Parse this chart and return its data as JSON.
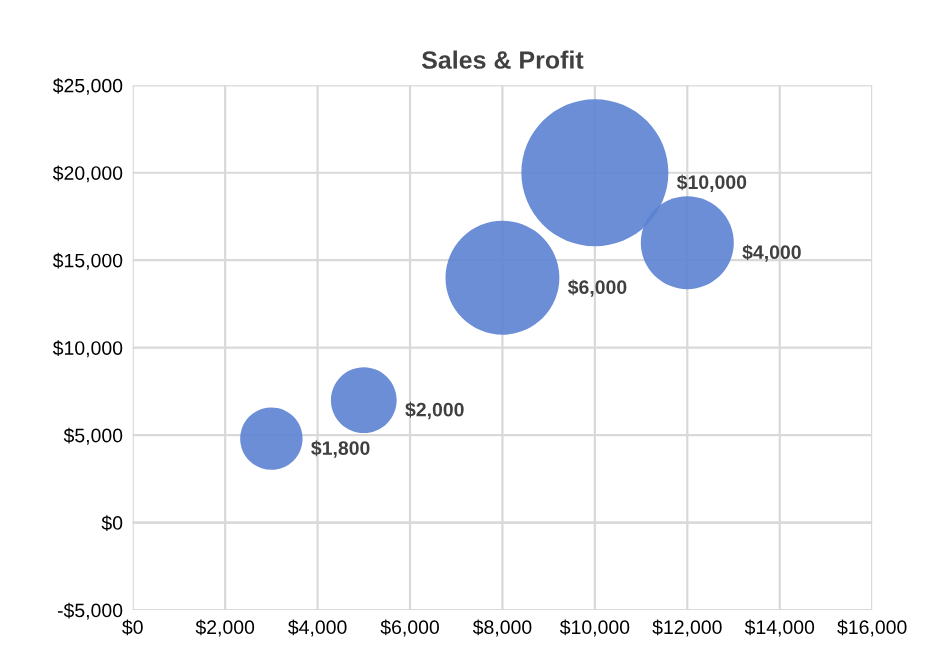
{
  "chart_data": {
    "type": "bubble",
    "title": "Sales & Profit",
    "x": [
      3000,
      5000,
      8000,
      10000,
      12000
    ],
    "values": [
      4800,
      7000,
      14000,
      20000,
      16000
    ],
    "sizes": [
      0.18,
      0.2,
      0.6,
      1,
      0.4
    ],
    "annotations": [
      "$1,800",
      "$2,000",
      "$6,000",
      "$10,000",
      "$4,000"
    ],
    "color": "#5b82d2",
    "xlim": [
      0,
      16000
    ],
    "ylim": [
      -5000,
      25000
    ],
    "xticks": [
      {
        "value": 0,
        "label": "$0"
      },
      {
        "value": 2000,
        "label": "$2,000"
      },
      {
        "value": 4000,
        "label": "$4,000"
      },
      {
        "value": 6000,
        "label": "$6,000"
      },
      {
        "value": 8000,
        "label": "$8,000"
      },
      {
        "value": 10000,
        "label": "$10,000"
      },
      {
        "value": 12000,
        "label": "$12,000"
      },
      {
        "value": 14000,
        "label": "$14,000"
      },
      {
        "value": 16000,
        "label": "$16,000"
      }
    ],
    "yticks": [
      {
        "value": -5000,
        "label": "-$5,000"
      },
      {
        "value": 0,
        "label": "$0"
      },
      {
        "value": 5000,
        "label": "$5,000"
      },
      {
        "value": 10000,
        "label": "$10,000"
      },
      {
        "value": 15000,
        "label": "$15,000"
      },
      {
        "value": 20000,
        "label": "$20,000"
      },
      {
        "value": 25000,
        "label": "$25,000"
      }
    ],
    "grid": true
  }
}
